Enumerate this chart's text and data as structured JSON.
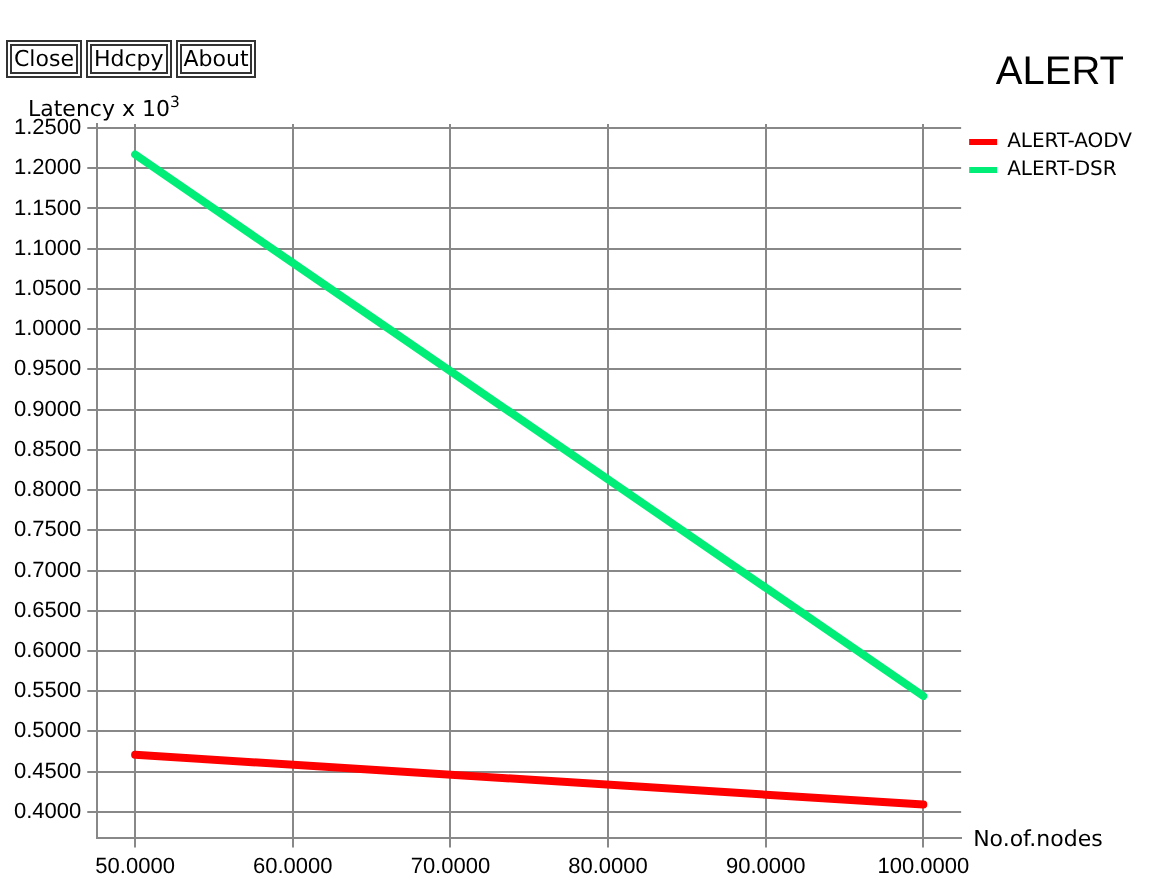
{
  "chart_data": {
    "type": "line",
    "title": "ALERT",
    "ylabel": "Latency x 10$^{3}$",
    "xlabel": "No.of.nodes",
    "annotations": [
      "Close",
      "Hdcpy",
      "About"
    ],
    "x": [
      50,
      100
    ],
    "series": [
      {
        "name": "ALERT-AODV",
        "color": "#ff0000",
        "values": [
          0.471,
          0.409
        ]
      },
      {
        "name": "ALERT-DSR",
        "color": "#00ee77",
        "values": [
          1.217,
          0.544
        ]
      }
    ],
    "xlim": [
      47.6,
      102.4
    ],
    "xticks": [
      {
        "value": 50,
        "label": "50.0000"
      },
      {
        "value": 60,
        "label": "60.0000"
      },
      {
        "value": 70,
        "label": "70.0000"
      },
      {
        "value": 80,
        "label": "80.0000"
      },
      {
        "value": 90,
        "label": "90.0000"
      },
      {
        "value": 100,
        "label": "100.0000"
      }
    ],
    "ylim": [
      0.368,
      1.255
    ],
    "yticks": [
      {
        "value": 0.4,
        "label": "0.4000"
      },
      {
        "value": 0.45,
        "label": "0.4500"
      },
      {
        "value": 0.5,
        "label": "0.5000"
      },
      {
        "value": 0.55,
        "label": "0.5500"
      },
      {
        "value": 0.6,
        "label": "0.6000"
      },
      {
        "value": 0.65,
        "label": "0.6500"
      },
      {
        "value": 0.7,
        "label": "0.7000"
      },
      {
        "value": 0.75,
        "label": "0.7500"
      },
      {
        "value": 0.8,
        "label": "0.8000"
      },
      {
        "value": 0.85,
        "label": "0.8500"
      },
      {
        "value": 0.9,
        "label": "0.9000"
      },
      {
        "value": 0.95,
        "label": "0.9500"
      },
      {
        "value": 1.0,
        "label": "1.0000"
      },
      {
        "value": 1.05,
        "label": "1.0500"
      },
      {
        "value": 1.1,
        "label": "1.1000"
      },
      {
        "value": 1.15,
        "label": "1.1500"
      },
      {
        "value": 1.2,
        "label": "1.2000"
      },
      {
        "value": 1.25,
        "label": "1.2500"
      }
    ],
    "grid": true,
    "legend": "top right",
    "marker": "none",
    "line_style": "solid"
  }
}
